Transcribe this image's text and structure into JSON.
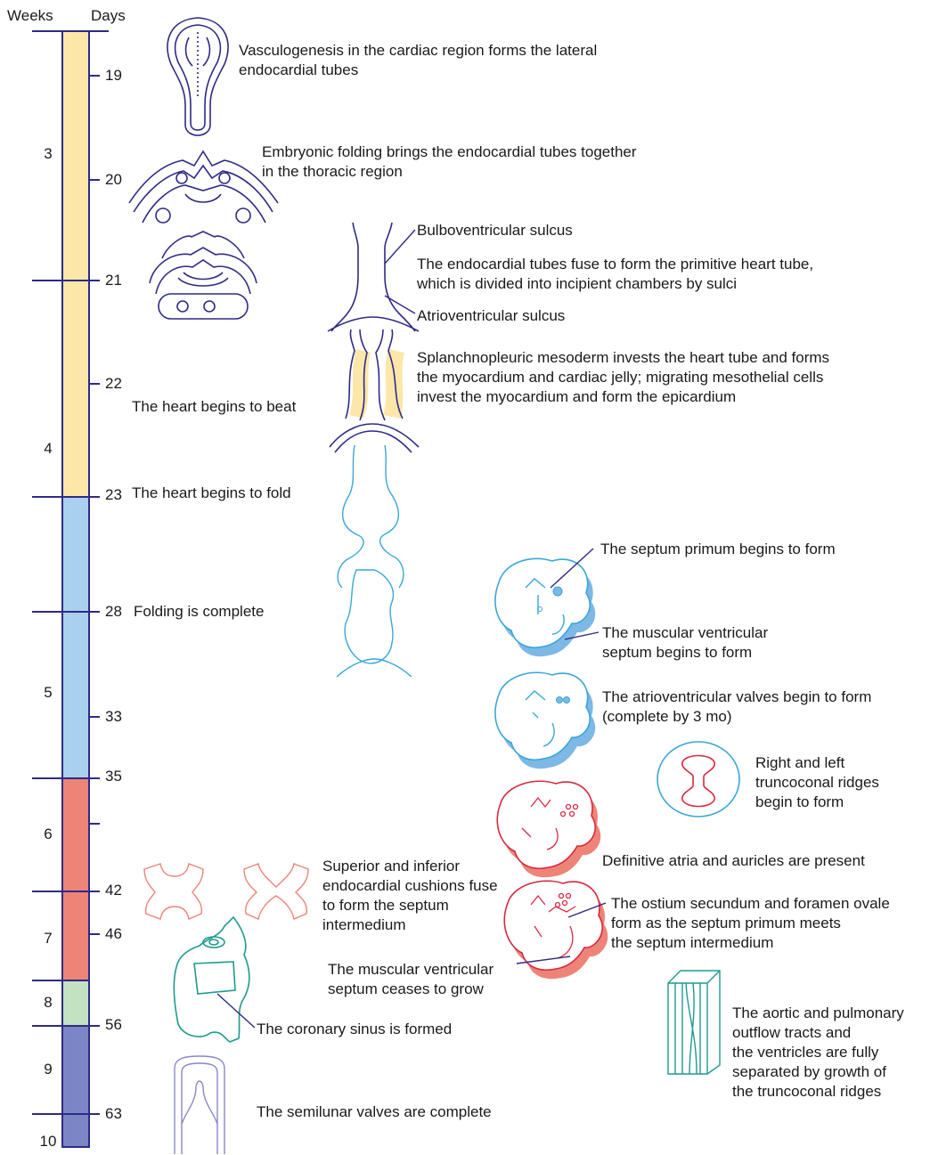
{
  "headers": {
    "weeks": "Weeks",
    "days": "Days"
  },
  "weeks": [
    "3",
    "4",
    "5",
    "6",
    "7",
    "8",
    "9",
    "10"
  ],
  "days": [
    "19",
    "20",
    "21",
    "22",
    "23",
    "28",
    "33",
    "35",
    "42",
    "46",
    "56",
    "63"
  ],
  "stage_colors": {
    "week3_4": "#FCE7A8",
    "week4_5": "#A9D0EE",
    "week6_7": "#EE8477",
    "week8": "#C3E2C1",
    "week9_10": "#7C86C6",
    "outline": "#2E2A86"
  },
  "events": {
    "vasculogenesis": "Vasculogenesis in the cardiac region forms the lateral\nendocardial tubes",
    "folding_brings": "Embryonic folding brings the endocardial tubes together\nin the thoracic region",
    "bulboventricular": "Bulboventricular sulcus",
    "tubes_fuse": "The endocardial tubes fuse to form the primitive heart tube,\nwhich is divided into incipient chambers by sulci",
    "atrioventricular_sulcus": "Atrioventricular sulcus",
    "splanchnopleuric": "Splanchnopleuric mesoderm invests the heart tube and forms\nthe myocardium and cardiac jelly; migrating mesothelial cells\ninvest the myocardium and form the epicardium",
    "heart_beat": "The heart begins to beat",
    "heart_fold": "The heart begins to fold",
    "folding_complete": "Folding is complete",
    "septum_primum": "The septum primum begins to form",
    "muscular_septum_begins": "The muscular ventricular\nseptum begins to form",
    "av_valves": "The atrioventricular valves begin to form\n(complete by 3 mo)",
    "truncoconal_ridges": "Right and left\ntruncoconal ridges\nbegin to form",
    "definitive_atria": "Definitive atria and auricles are present",
    "cushions_fuse": "Superior and inferior\nendocardial cushions fuse\nto form the septum\nintermedium",
    "ostium_secundum": "The ostium secundum and foramen ovale\nform as the septum primum meets\nthe septum intermedium",
    "muscular_septum_ceases": "The muscular ventricular\nseptum ceases to grow",
    "coronary_sinus": "The coronary sinus is formed",
    "outflow_tracts": "The aortic and pulmonary\noutflow tracts and\nthe ventricles are fully\nseparated by growth of\nthe truncoconal ridges",
    "semilunar": "The semilunar valves are complete"
  }
}
